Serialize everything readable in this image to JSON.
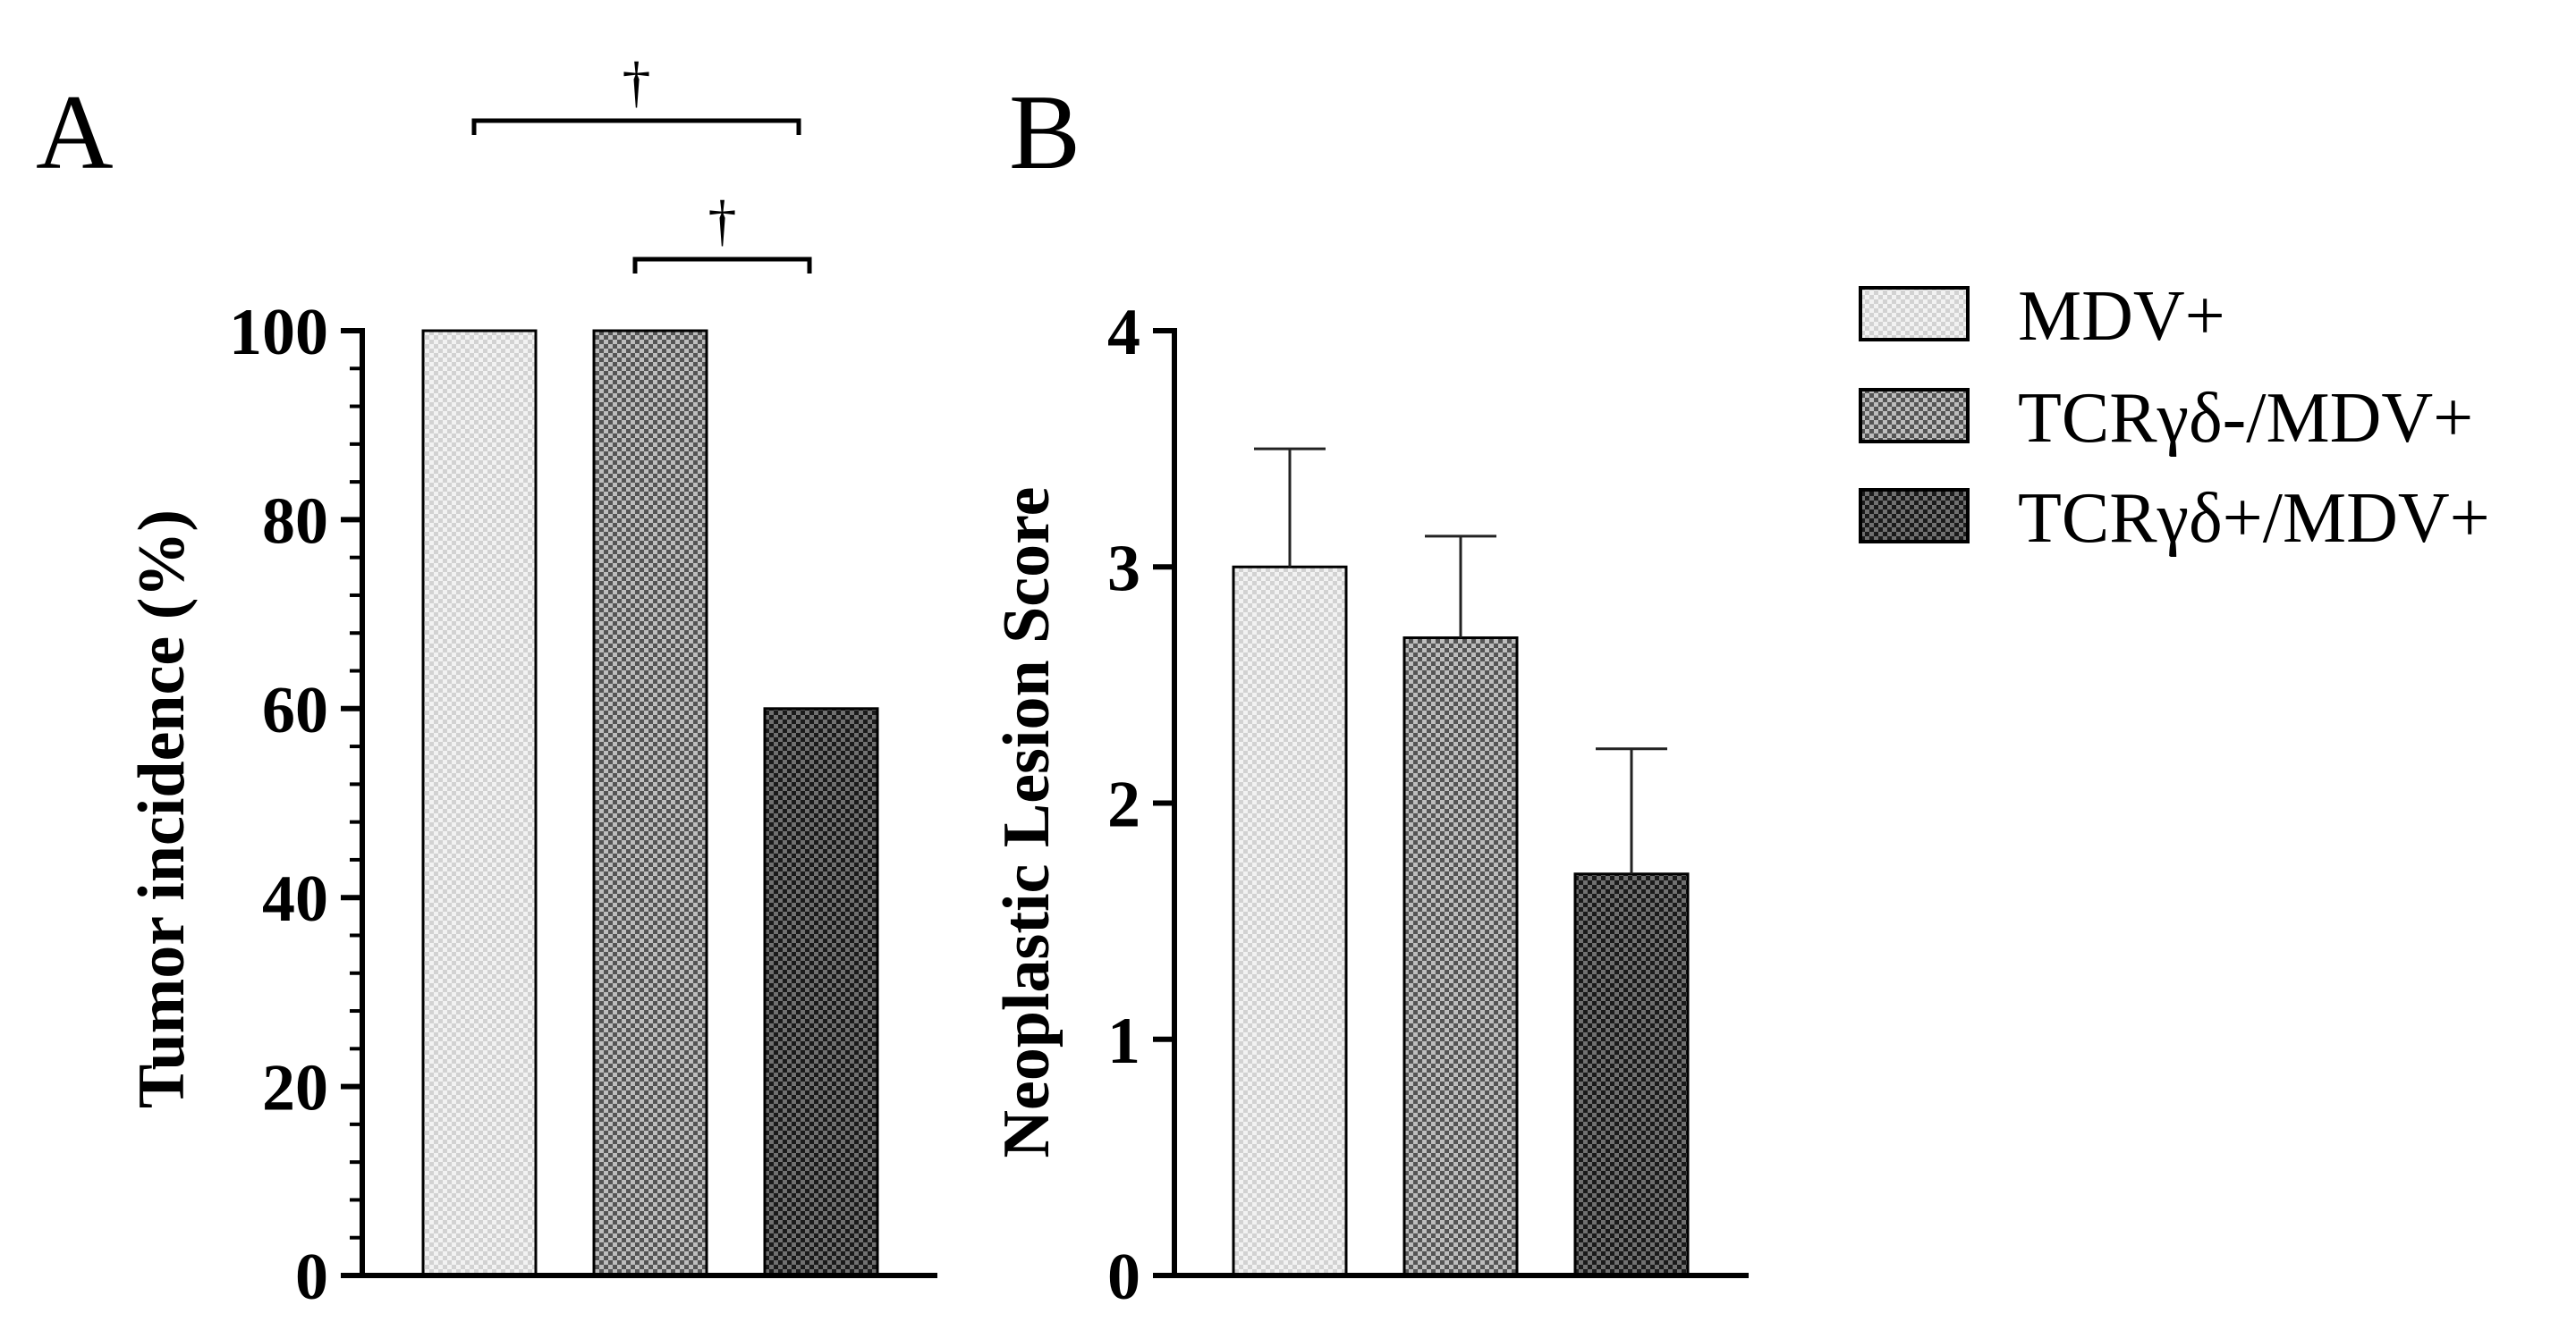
{
  "chart_data": [
    {
      "type": "bar",
      "panel_label": "A",
      "ylabel": "Tumor incidence (%)",
      "ylim": [
        0,
        100
      ],
      "yticks": [
        "0",
        "20",
        "40",
        "60",
        "80",
        "100"
      ],
      "categories": [
        "MDV+",
        "TCRγδ-/MDV+",
        "TCRγδ+/MDV+"
      ],
      "values": [
        100,
        100,
        60
      ],
      "significance": [
        {
          "from": 0,
          "to": 2,
          "symbol": "†"
        },
        {
          "from": 1,
          "to": 2,
          "symbol": "†"
        }
      ]
    },
    {
      "type": "bar",
      "panel_label": "B",
      "ylabel": "Neoplastic Lesion Score",
      "ylim": [
        0,
        4
      ],
      "yticks": [
        "0",
        "1",
        "2",
        "3",
        "4"
      ],
      "categories": [
        "MDV+",
        "TCRγδ-/MDV+",
        "TCRγδ+/MDV+"
      ],
      "values": [
        3.0,
        2.7,
        1.7
      ],
      "errors": [
        0.5,
        0.43,
        0.53
      ]
    }
  ],
  "legend": {
    "items": [
      {
        "label": "MDV+",
        "pattern": "light"
      },
      {
        "label": "TCRγδ-/MDV+",
        "pattern": "medium"
      },
      {
        "label": "TCRγδ+/MDV+",
        "pattern": "dark"
      }
    ]
  }
}
